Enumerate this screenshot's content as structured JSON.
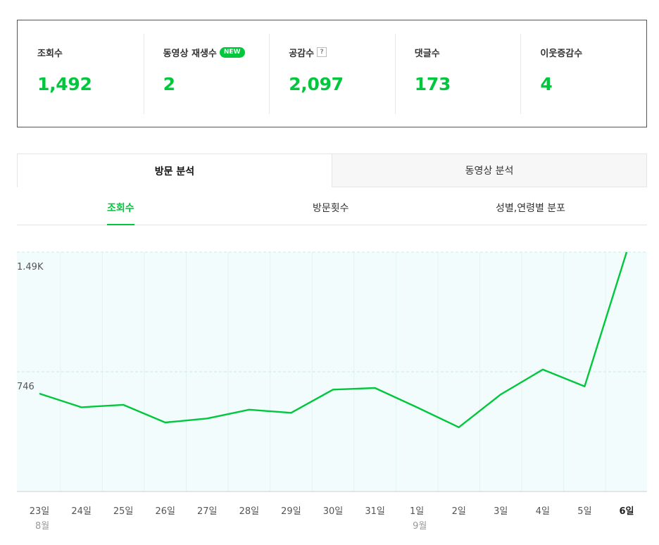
{
  "stats": [
    {
      "label": "조회수",
      "value": "1,492",
      "badge": ""
    },
    {
      "label": "동영상 재생수",
      "value": "2",
      "badge": "NEW"
    },
    {
      "label": "공감수",
      "value": "2,097",
      "badge": "?"
    },
    {
      "label": "댓글수",
      "value": "173",
      "badge": ""
    },
    {
      "label": "이웃증감수",
      "value": "4",
      "badge": ""
    }
  ],
  "main_tabs": [
    {
      "label": "방문 분석",
      "active": true
    },
    {
      "label": "동영상 분석",
      "active": false
    }
  ],
  "sub_tabs": [
    {
      "label": "조회수",
      "active": true
    },
    {
      "label": "방문횟수",
      "active": false
    },
    {
      "label": "성별,연령별 분포",
      "active": false
    }
  ],
  "colors": {
    "accent": "#00c73c",
    "plot_bg": "#f3fcfd"
  },
  "chart_data": {
    "type": "line",
    "x": [
      "23일",
      "24일",
      "25일",
      "26일",
      "27일",
      "28일",
      "29일",
      "30일",
      "31일",
      "1일",
      "2일",
      "3일",
      "4일",
      "5일",
      "6일"
    ],
    "month_labels": [
      {
        "index": 0,
        "label": "8월"
      },
      {
        "index": 9,
        "label": "9월"
      }
    ],
    "y_tick_labels": [
      "1.49K",
      "746"
    ],
    "y_ticks": [
      1492,
      746
    ],
    "ylim": [
      0,
      1492
    ],
    "grid": true,
    "series": [
      {
        "values": [
          610,
          525,
          540,
          430,
          455,
          510,
          490,
          635,
          645,
          525,
          400,
          605,
          760,
          655,
          1492
        ]
      }
    ]
  }
}
